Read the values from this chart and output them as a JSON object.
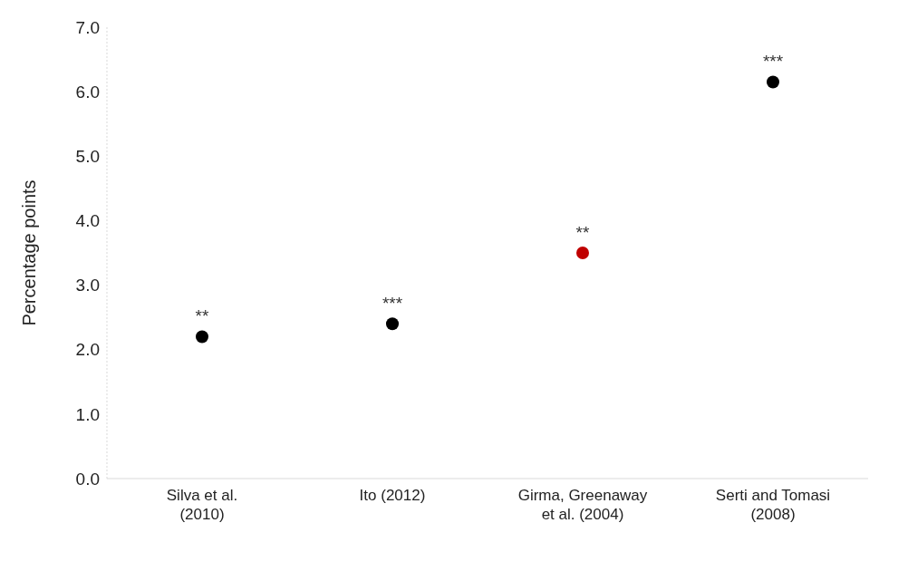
{
  "chart_data": {
    "type": "scatter",
    "ylabel": "Percentage points",
    "categories": [
      "Silva et al. (2010)",
      "Ito (2012)",
      "Girma, Greenaway et al. (2004)",
      "Serti and Tomasi (2008)"
    ],
    "values": [
      2.2,
      2.4,
      3.5,
      6.15
    ],
    "colors": [
      "#000000",
      "#000000",
      "#c00000",
      "#000000"
    ],
    "ylim": [
      0,
      7
    ],
    "yticks": [
      {
        "value": 0,
        "label": "0.0"
      },
      {
        "value": 1,
        "label": "1.0"
      },
      {
        "value": 2,
        "label": "2.0"
      },
      {
        "value": 3,
        "label": "3.0"
      },
      {
        "value": 4,
        "label": "4.0"
      },
      {
        "value": 5,
        "label": "5.0"
      },
      {
        "value": 6,
        "label": "6.0"
      },
      {
        "value": 7,
        "label": "7.0"
      }
    ],
    "grid": false,
    "marker": "circle",
    "annotations": [
      {
        "text": "**",
        "x": "Silva et al. (2010)",
        "y": 2.2
      },
      {
        "text": "***",
        "x": "Ito (2012)",
        "y": 2.4
      },
      {
        "text": "**",
        "x": "Girma, Greenaway et al. (2004)",
        "y": 3.5
      },
      {
        "text": "***",
        "x": "Serti and Tomasi (2008)",
        "y": 6.15
      }
    ]
  }
}
